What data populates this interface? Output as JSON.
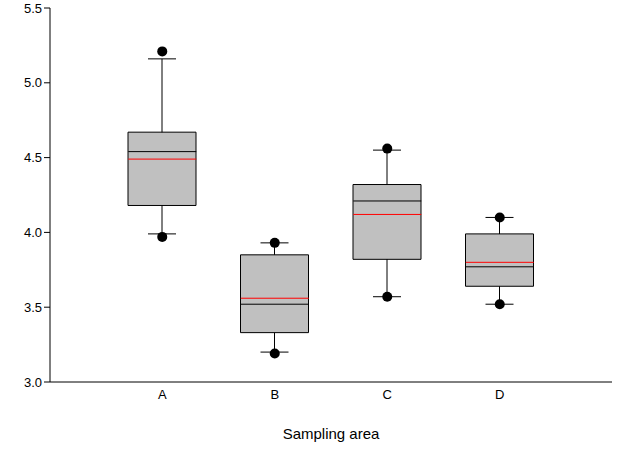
{
  "chart_data": {
    "type": "box",
    "x_label": "Sampling area",
    "categories": [
      "A",
      "B",
      "C",
      "D"
    ],
    "whisker_low": [
      3.99,
      3.2,
      3.57,
      3.52
    ],
    "q1": [
      4.18,
      3.33,
      3.82,
      3.64
    ],
    "median": [
      4.54,
      3.52,
      4.21,
      3.77
    ],
    "mean": [
      4.49,
      3.56,
      4.12,
      3.8
    ],
    "q3": [
      4.67,
      3.85,
      4.32,
      3.99
    ],
    "whisker_high": [
      5.16,
      3.93,
      4.55,
      4.1
    ],
    "outliers_low": [
      3.97,
      3.19,
      3.57,
      3.52
    ],
    "outliers_high": [
      5.21,
      3.93,
      4.56,
      4.1
    ],
    "color": "#c0c0c0",
    "ylim": [
      3.0,
      5.5
    ],
    "yticks": [
      {
        "value": 3,
        "label": "3.0"
      },
      {
        "value": 3.5,
        "label": "3.5"
      },
      {
        "value": 4,
        "label": "4.0"
      },
      {
        "value": 4.5,
        "label": "4.5"
      },
      {
        "value": 5,
        "label": "5.0"
      },
      {
        "value": 5.5,
        "label": "5.5"
      }
    ]
  }
}
